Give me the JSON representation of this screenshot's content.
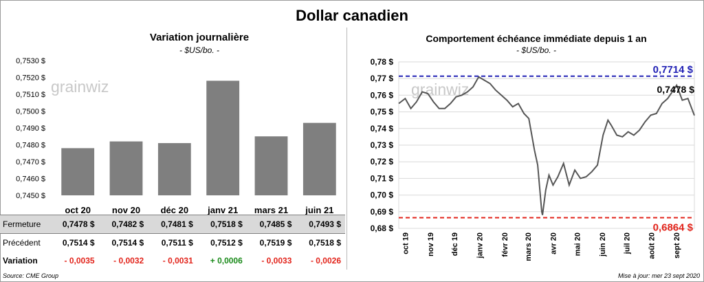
{
  "title": "Dollar canadien",
  "left": {
    "subtitle": "Variation  journalière",
    "unit": "- $US/bo. -",
    "watermark": "grainwiz",
    "table": {
      "rows": [
        {
          "label": "Fermeture",
          "values": [
            "0,7478  $",
            "0,7482  $",
            "0,7481  $",
            "0,7518  $",
            "0,7485  $",
            "0,7493  $"
          ]
        },
        {
          "label": "Précédent",
          "values": [
            "0,7514  $",
            "0,7514  $",
            "0,7511  $",
            "0,7512  $",
            "0,7519  $",
            "0,7518  $"
          ]
        },
        {
          "label": "Variation",
          "values": [
            "- 0,0035",
            "- 0,0032",
            "- 0,0031",
            "+ 0,0006",
            "- 0,0033",
            "- 0,0026"
          ]
        }
      ]
    },
    "source": "Source: CME Group"
  },
  "right": {
    "subtitle": "Comportement échéance immédiate depuis 1 an",
    "unit": "- $US/bo. -",
    "watermark": "grainwiz",
    "update": "Mise à jour: mer 23 sept 2020"
  },
  "colors": {
    "bar": "#7f7f7f",
    "line": "#555555",
    "high": "#1f1fb4",
    "low": "#e2231a",
    "positive": "#1a8a1a",
    "negative": "#e2231a"
  },
  "chart_data": [
    {
      "type": "bar",
      "categories": [
        "oct 20",
        "nov 20",
        "déc 20",
        "janv 21",
        "mars 21",
        "juin 21"
      ],
      "values": [
        0.7478,
        0.7482,
        0.7481,
        0.7518,
        0.7485,
        0.7493
      ],
      "ylim": [
        0.745,
        0.753
      ],
      "yticks": [
        "0,7450 $",
        "0,7460 $",
        "0,7470 $",
        "0,7480 $",
        "0,7490 $",
        "0,7500 $",
        "0,7510 $",
        "0,7520 $",
        "0,7530 $"
      ],
      "grid": false
    },
    {
      "type": "line",
      "x": [
        "2019-09-23",
        "2019-10-01",
        "2019-10-08",
        "2019-10-15",
        "2019-10-22",
        "2019-10-29",
        "2019-11-05",
        "2019-11-12",
        "2019-11-19",
        "2019-11-26",
        "2019-12-03",
        "2019-12-10",
        "2019-12-17",
        "2019-12-24",
        "2019-12-31",
        "2020-01-07",
        "2020-01-14",
        "2020-01-21",
        "2020-01-28",
        "2020-02-04",
        "2020-02-11",
        "2020-02-18",
        "2020-02-25",
        "2020-03-02",
        "2020-03-09",
        "2020-03-13",
        "2020-03-18",
        "2020-03-19",
        "2020-03-23",
        "2020-03-27",
        "2020-04-01",
        "2020-04-07",
        "2020-04-14",
        "2020-04-21",
        "2020-04-28",
        "2020-05-05",
        "2020-05-12",
        "2020-05-19",
        "2020-05-26",
        "2020-06-02",
        "2020-06-08",
        "2020-06-12",
        "2020-06-19",
        "2020-06-26",
        "2020-07-03",
        "2020-07-10",
        "2020-07-17",
        "2020-07-24",
        "2020-07-31",
        "2020-08-07",
        "2020-08-14",
        "2020-08-21",
        "2020-08-28",
        "2020-09-01",
        "2020-09-08",
        "2020-09-15",
        "2020-09-23"
      ],
      "y": [
        0.755,
        0.758,
        0.752,
        0.756,
        0.762,
        0.761,
        0.756,
        0.752,
        0.752,
        0.755,
        0.759,
        0.76,
        0.762,
        0.765,
        0.771,
        0.769,
        0.767,
        0.763,
        0.76,
        0.757,
        0.753,
        0.755,
        0.749,
        0.746,
        0.727,
        0.718,
        0.69,
        0.688,
        0.703,
        0.712,
        0.706,
        0.711,
        0.719,
        0.706,
        0.715,
        0.71,
        0.711,
        0.714,
        0.718,
        0.736,
        0.745,
        0.742,
        0.736,
        0.735,
        0.738,
        0.736,
        0.739,
        0.744,
        0.748,
        0.749,
        0.755,
        0.758,
        0.763,
        0.766,
        0.757,
        0.758,
        0.7478
      ],
      "ylim": [
        0.68,
        0.78
      ],
      "yticks": [
        "0,68 $",
        "0,69 $",
        "0,70 $",
        "0,71 $",
        "0,72 $",
        "0,73 $",
        "0,74 $",
        "0,75 $",
        "0,76 $",
        "0,77 $",
        "0,78 $"
      ],
      "xticks": [
        "oct 19",
        "nov 19",
        "déc 19",
        "janv 20",
        "févr 20",
        "mars 20",
        "avr 20",
        "mai 20",
        "juin 20",
        "juil 20",
        "août 20",
        "sept 20"
      ],
      "high": {
        "value": 0.7714,
        "label": "0,7714 $"
      },
      "low": {
        "value": 0.6864,
        "label": "0,6864 $"
      },
      "last": {
        "value": 0.7478,
        "label": "0,7478 $"
      },
      "grid": true
    }
  ]
}
